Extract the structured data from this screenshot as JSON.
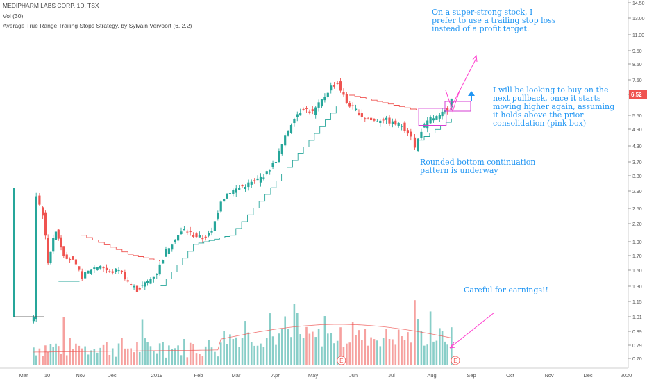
{
  "header": {
    "title": "MEDIPHARM LABS CORP, 1D, TSX",
    "volume_label": "Vol (30)",
    "strategy_label": "Average True Range Trailing Stops Strategy, by Sylvain Vervoort (6, 2.2)"
  },
  "annotations": {
    "profit_note": "On a super-strong stock, I prefer to use a trailing stop loss instead of a profit target.",
    "buy_note": "I will be looking to buy on the next pullback, once it starts moving higher again, assuming it holds above the prior consolidation (pink box)",
    "pattern_note": "Rounded bottom continuation pattern is underway",
    "earnings_note": "Careful for earnings!!"
  },
  "earnings_marker": "E",
  "colors": {
    "up": "#26a69a",
    "down": "#ef5350",
    "annotation": "#2196f3",
    "arrow": "#ff3fcf",
    "box": "#d63cd3",
    "stop_long": "#26a69a",
    "stop_short": "#ef5350",
    "last_price": "#ef5350"
  },
  "chart_data": {
    "type": "candlestick",
    "y_axis_scale": "log",
    "y_ticks": [
      "14.50",
      "13.00",
      "11.00",
      "9.50",
      "8.50",
      "7.50",
      "6.52",
      "5.50",
      "4.90",
      "4.30",
      "3.70",
      "3.30",
      "2.90",
      "2.50",
      "2.20",
      "1.90",
      "1.70",
      "1.50",
      "1.30",
      "1.15",
      "1.01",
      "0.89",
      "0.79",
      "0.70"
    ],
    "x_ticks": [
      "Mar",
      "10",
      "Nov",
      "Dec",
      "2019",
      "Feb",
      "Mar",
      "Apr",
      "May",
      "Jun",
      "Jul",
      "Aug",
      "Sep",
      "Oct",
      "Nov",
      "Dec",
      "2020"
    ],
    "last_price": 6.52,
    "price_path": [
      {
        "date": "2018-10-01",
        "close": 1.0
      },
      {
        "date": "2018-10-03",
        "close": 2.8
      },
      {
        "date": "2018-10-08",
        "close": 2.4
      },
      {
        "date": "2018-10-12",
        "close": 1.6
      },
      {
        "date": "2018-10-18",
        "close": 2.1
      },
      {
        "date": "2018-10-24",
        "close": 1.7
      },
      {
        "date": "2018-10-31",
        "close": 1.6
      },
      {
        "date": "2018-11-07",
        "close": 1.4
      },
      {
        "date": "2018-11-14",
        "close": 1.5
      },
      {
        "date": "2018-11-21",
        "close": 1.55
      },
      {
        "date": "2018-11-28",
        "close": 1.45
      },
      {
        "date": "2018-12-05",
        "close": 1.5
      },
      {
        "date": "2018-12-12",
        "close": 1.35
      },
      {
        "date": "2018-12-19",
        "close": 1.25
      },
      {
        "date": "2018-12-27",
        "close": 1.35
      },
      {
        "date": "2019-01-03",
        "close": 1.45
      },
      {
        "date": "2019-01-10",
        "close": 1.75
      },
      {
        "date": "2019-01-17",
        "close": 1.95
      },
      {
        "date": "2019-01-24",
        "close": 2.1
      },
      {
        "date": "2019-01-31",
        "close": 2.0
      },
      {
        "date": "2019-02-07",
        "close": 1.95
      },
      {
        "date": "2019-02-14",
        "close": 2.05
      },
      {
        "date": "2019-02-21",
        "close": 2.7
      },
      {
        "date": "2019-02-28",
        "close": 2.9
      },
      {
        "date": "2019-03-07",
        "close": 3.0
      },
      {
        "date": "2019-03-14",
        "close": 3.1
      },
      {
        "date": "2019-03-21",
        "close": 3.2
      },
      {
        "date": "2019-03-28",
        "close": 3.4
      },
      {
        "date": "2019-04-04",
        "close": 3.8
      },
      {
        "date": "2019-04-11",
        "close": 4.6
      },
      {
        "date": "2019-04-18",
        "close": 5.5
      },
      {
        "date": "2019-04-25",
        "close": 5.9
      },
      {
        "date": "2019-05-02",
        "close": 5.7
      },
      {
        "date": "2019-05-09",
        "close": 6.3
      },
      {
        "date": "2019-05-16",
        "close": 7.1
      },
      {
        "date": "2019-05-21",
        "close": 7.3
      },
      {
        "date": "2019-05-28",
        "close": 6.2
      },
      {
        "date": "2019-06-04",
        "close": 5.8
      },
      {
        "date": "2019-06-11",
        "close": 5.4
      },
      {
        "date": "2019-06-18",
        "close": 5.3
      },
      {
        "date": "2019-06-25",
        "close": 5.4
      },
      {
        "date": "2019-07-02",
        "close": 5.2
      },
      {
        "date": "2019-07-09",
        "close": 5.1
      },
      {
        "date": "2019-07-16",
        "close": 4.7
      },
      {
        "date": "2019-07-19",
        "close": 4.2
      },
      {
        "date": "2019-07-24",
        "close": 4.9
      },
      {
        "date": "2019-07-31",
        "close": 5.4
      },
      {
        "date": "2019-08-07",
        "close": 5.5
      },
      {
        "date": "2019-08-13",
        "close": 5.9
      },
      {
        "date": "2019-08-16",
        "close": 6.52
      }
    ],
    "trailing_stop": [
      {
        "date": "2018-10-20",
        "value": 1.35,
        "side": "long"
      },
      {
        "date": "2018-11-05",
        "value": 1.35,
        "side": "long"
      },
      {
        "date": "2018-11-06",
        "value": 2.0,
        "side": "short"
      },
      {
        "date": "2018-12-12",
        "value": 1.7,
        "side": "short"
      },
      {
        "date": "2019-01-05",
        "value": 1.6,
        "side": "short"
      },
      {
        "date": "2019-01-06",
        "value": 1.3,
        "side": "long"
      },
      {
        "date": "2019-01-31",
        "value": 1.85,
        "side": "long"
      },
      {
        "date": "2019-02-28",
        "value": 2.0,
        "side": "long"
      },
      {
        "date": "2019-03-31",
        "value": 3.0,
        "side": "long"
      },
      {
        "date": "2019-05-20",
        "value": 6.0,
        "side": "long"
      },
      {
        "date": "2019-05-30",
        "value": 6.6,
        "side": "short"
      },
      {
        "date": "2019-07-20",
        "value": 5.8,
        "side": "short"
      },
      {
        "date": "2019-07-22",
        "value": 4.5,
        "side": "long"
      },
      {
        "date": "2019-08-16",
        "value": 5.4,
        "side": "long"
      }
    ],
    "consolidation_box": {
      "x_start": "2019-07-22",
      "x_end": "2019-08-12",
      "y_low": 5.1,
      "y_high": 5.9
    },
    "earnings_dates": [
      "2019-05-24",
      "2019-08-19"
    ]
  }
}
